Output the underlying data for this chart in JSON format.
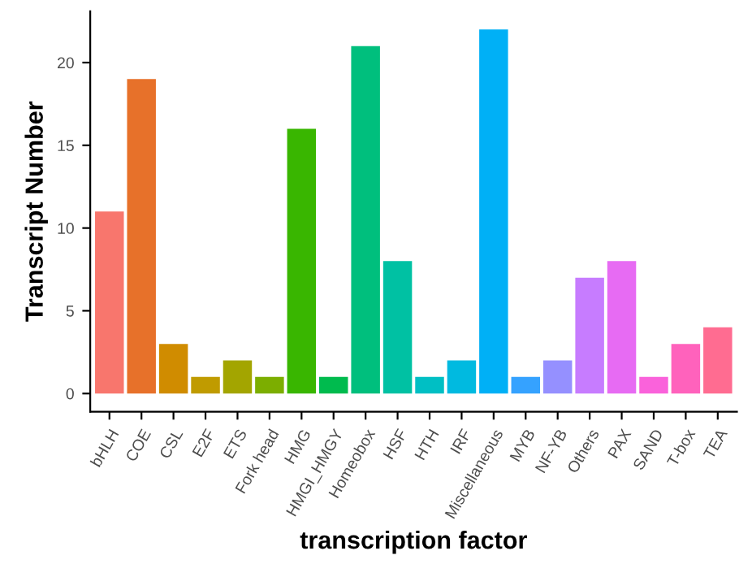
{
  "chart_data": {
    "type": "bar",
    "xlabel": "transcription factor",
    "ylabel": "Transcript Number",
    "categories": [
      "bHLH",
      "COE",
      "CSL",
      "E2F",
      "ETS",
      "Fork head",
      "HMG",
      "HMGI_HMGY",
      "Homeobox",
      "HSF",
      "HTH",
      "IRF",
      "Miscellaneous",
      "MYB",
      "NF-YB",
      "Others",
      "PAX",
      "SAND",
      "T-box",
      "TEA"
    ],
    "values": [
      11,
      19,
      3,
      1,
      2,
      1,
      16,
      1,
      21,
      8,
      1,
      2,
      22,
      1,
      2,
      7,
      8,
      1,
      3,
      4
    ],
    "colors": [
      "#f8766d",
      "#e7712a",
      "#d08c00",
      "#c09b00",
      "#a3a500",
      "#7cae00",
      "#39b600",
      "#00bb4e",
      "#00bf7d",
      "#00c1a3",
      "#00bfc4",
      "#00bae0",
      "#00b0f6",
      "#35a2ff",
      "#9590ff",
      "#c77cff",
      "#e76bf3",
      "#fa62db",
      "#ff62bc",
      "#ff6c91"
    ],
    "ylim": [
      -1.1,
      23.1
    ],
    "yticks": [
      0,
      5,
      10,
      15,
      20
    ],
    "grid": false,
    "legend": false
  }
}
